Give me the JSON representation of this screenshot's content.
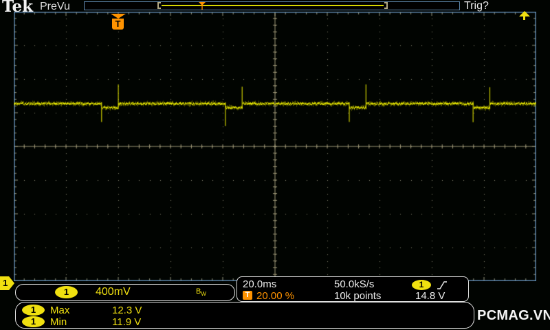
{
  "header": {
    "brand": "Tek",
    "mode": "PreVu",
    "trigger_status": "Trig?"
  },
  "record_view": {
    "trigger_marker": "T"
  },
  "trigger": {
    "position_marker": "T",
    "badge": "T",
    "source_channel": "1",
    "slope": "rising",
    "position_percent": "20.00 %",
    "level": "14.8 V"
  },
  "channel1": {
    "id": "1",
    "scale": "400mV",
    "bandwidth_main": "B",
    "bandwidth_sub": "W"
  },
  "horizontal": {
    "time_per_div": "20.0ms",
    "sample_rate": "50.0kS/s",
    "record_length": "10k points"
  },
  "measurements": {
    "rows": [
      {
        "channel": "1",
        "label": "Max",
        "value": "12.3 V"
      },
      {
        "channel": "1",
        "label": "Min",
        "value": "11.9 V"
      }
    ]
  },
  "watermark": "PCMAG.VN",
  "colors": {
    "trace": "#e2e200",
    "trace_dim": "#9a9a00",
    "accent_yellow": "#f0e010",
    "orange": "#ff9300",
    "graticule_border": "#5c84a8",
    "grid_dot": "#8c8c74",
    "center_line": "#a59e7c",
    "edge_tick": "#9a9a80",
    "text_white": "#ececec"
  },
  "chart_data": {
    "type": "line",
    "title": "CH1 oscilloscope trace",
    "x_axis": "10 divisions x 20.0ms/div",
    "y_axis": "8 divisions x 400mV/div",
    "legend": "none",
    "grid": "dotted graticule with center crosshair ticks",
    "divisions": {
      "x": 10,
      "y": 8
    },
    "baseline_div_from_top": 2.73,
    "noise_pp_div": 0.1,
    "pulse": {
      "first_start_div": 1.68,
      "period_div": 2.37,
      "width_div": 0.32,
      "depth_div": 0.12,
      "lead_spike_below_div": 0.6,
      "trail_spike_above_div": 0.53
    },
    "measured": {
      "max": "12.3 V",
      "min": "11.9 V"
    }
  }
}
